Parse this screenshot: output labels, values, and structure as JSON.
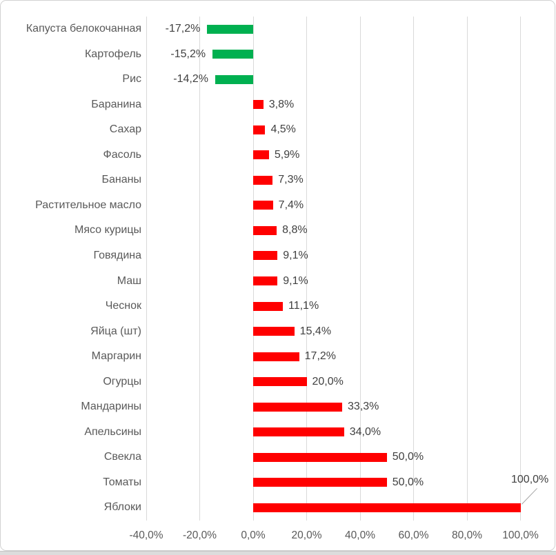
{
  "chart_data": {
    "type": "bar",
    "orientation": "horizontal",
    "title": "",
    "categories": [
      "Капуста белокочанная",
      "Картофель",
      "Рис",
      "Баранина",
      "Сахар",
      "Фасоль",
      "Бананы",
      "Растительное масло",
      "Мясо курицы",
      "Говядина",
      "Маш",
      "Чеснок",
      "Яйца (шт)",
      "Маргарин",
      "Огурцы",
      "Мандарины",
      "Апельсины",
      "Свекла",
      "Томаты",
      "Яблоки"
    ],
    "values": [
      -17.2,
      -15.2,
      -14.2,
      3.8,
      4.5,
      5.9,
      7.3,
      7.4,
      8.8,
      9.1,
      9.1,
      11.1,
      15.4,
      17.2,
      20.0,
      33.3,
      34.0,
      50.0,
      50.0,
      100.0
    ],
    "value_labels": [
      "-17,2%",
      "-15,2%",
      "-14,2%",
      "3,8%",
      "4,5%",
      "5,9%",
      "7,3%",
      "7,4%",
      "8,8%",
      "9,1%",
      "9,1%",
      "11,1%",
      "15,4%",
      "17,2%",
      "20,0%",
      "33,3%",
      "34,0%",
      "50,0%",
      "50,0%",
      "100,0%"
    ],
    "x_tick_values": [
      -40,
      -20,
      0,
      20,
      40,
      60,
      80,
      100
    ],
    "x_tick_labels": [
      "-40,0%",
      "-20,0%",
      "0,0%",
      "20,0%",
      "40,0%",
      "60,0%",
      "80,0%",
      "100,0%"
    ],
    "xlim": [
      -40,
      100
    ],
    "grid": true,
    "legend": false,
    "colors": {
      "positive_bar": "#ff0000",
      "negative_bar": "#00b050",
      "gridline": "#d9d9d9",
      "category_text": "#595959",
      "value_text": "#404040",
      "tick_text": "#595959",
      "leader_line": "#a6a6a6",
      "background": "#ffffff"
    }
  }
}
